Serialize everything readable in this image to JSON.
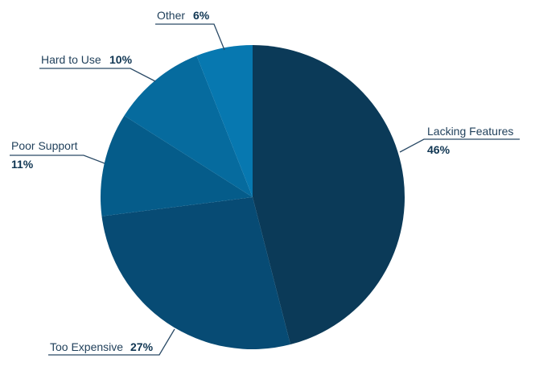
{
  "chart_data": {
    "type": "pie",
    "title": "",
    "slices": [
      {
        "label": "Lacking Features",
        "value": 46,
        "value_label": "46%",
        "color": "#0b3a58"
      },
      {
        "label": "Too Expensive",
        "value": 27,
        "value_label": "27%",
        "color": "#074b74"
      },
      {
        "label": "Poor Support",
        "value": 11,
        "value_label": "11%",
        "color": "#055c8a"
      },
      {
        "label": "Hard to Use",
        "value": 10,
        "value_label": "10%",
        "color": "#066b9e"
      },
      {
        "label": "Other",
        "value": 6,
        "value_label": "6%",
        "color": "#0778b0"
      }
    ],
    "start": "12 o'clock",
    "direction": "clockwise"
  }
}
